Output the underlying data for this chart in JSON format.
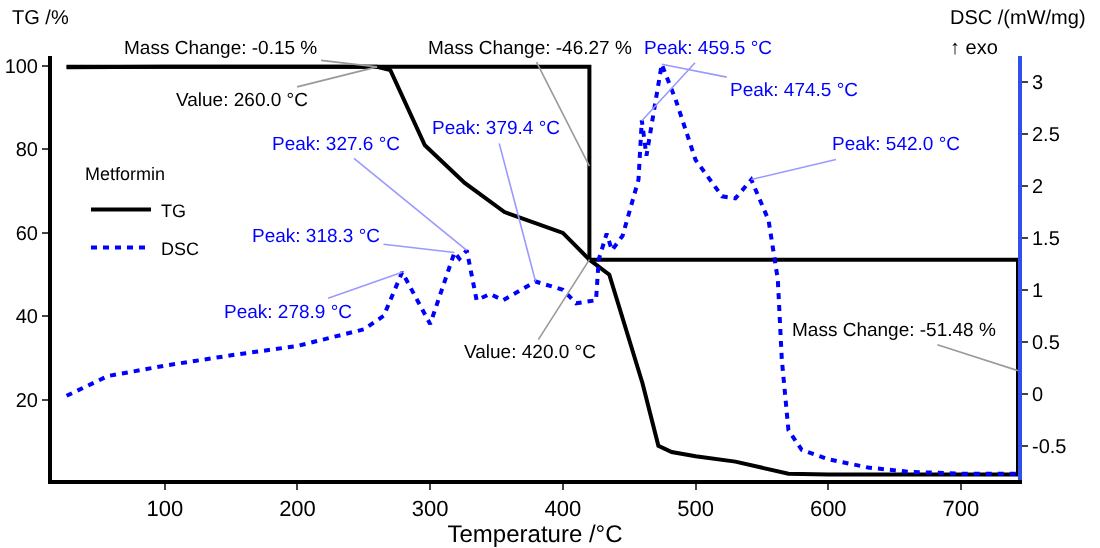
{
  "chart_data": {
    "type": "line",
    "xlabel": "Temperature /°C",
    "ylabel": "TG /%",
    "y2label": "DSC /(mW/mg)",
    "legend_title": "Metformin",
    "xlim": [
      15,
      743
    ],
    "xticks": [
      100,
      200,
      300,
      400,
      500,
      600,
      700
    ],
    "ylim": [
      0.8,
      102.4
    ],
    "yticks": [
      20,
      40,
      60,
      80,
      100
    ],
    "y2lim": [
      -0.83,
      3.25
    ],
    "y2ticks": [
      -0.5,
      0.0,
      0.5,
      1.0,
      1.5,
      2.0,
      2.5,
      3.0
    ],
    "grid": false,
    "legend": "left",
    "series": [
      {
        "name": "TG",
        "color": "#000000",
        "line_style": "solid",
        "x": [
          26,
          100,
          200,
          260,
          270,
          296,
          326,
          356,
          400,
          420,
          435,
          460,
          472,
          482,
          500,
          530,
          570,
          600,
          743
        ],
        "values": [
          99.7,
          99.8,
          99.8,
          99.8,
          99,
          81,
          72,
          65,
          60,
          53.6,
          50,
          24,
          9,
          7.5,
          6.5,
          5.2,
          2.3,
          2.1,
          2.1
        ]
      },
      {
        "name": "DSC",
        "color": "#0000ff",
        "line_style": "dotted",
        "axis": "y2",
        "x": [
          26,
          57,
          100,
          150,
          200,
          250,
          265,
          278.9,
          300,
          318.3,
          322,
          327.6,
          335,
          345,
          355,
          379.4,
          400,
          410,
          425,
          427,
          433,
          437,
          445,
          457,
          459.5,
          463,
          474.5,
          485,
          500,
          520,
          530,
          542,
          555,
          562,
          565,
          570,
          580,
          600,
          630,
          660,
          700,
          743
        ],
        "values": [
          -0.02,
          0.17,
          0.27,
          0.37,
          0.46,
          0.62,
          0.75,
          1.17,
          0.67,
          1.36,
          1.3,
          1.38,
          0.9,
          0.96,
          0.9,
          1.08,
          1.0,
          0.87,
          0.9,
          1.29,
          1.54,
          1.38,
          1.52,
          2.06,
          2.63,
          2.29,
          3.17,
          2.83,
          2.25,
          1.9,
          1.88,
          2.06,
          1.67,
          1.1,
          0.33,
          -0.35,
          -0.54,
          -0.63,
          -0.71,
          -0.75,
          -0.77,
          -0.77
        ]
      },
      {
        "type": "line",
        "color": "#000000",
        "line_style": "solid",
        "x": [
          26,
          420,
          420,
          743,
          743
        ],
        "values": [
          99.8,
          99.8,
          53.6,
          53.6,
          2.1
        ]
      }
    ],
    "annotations": [
      "↑ exo",
      {
        "text": "Mass Change: -0.15 %",
        "x": 260,
        "y": 99.8
      },
      {
        "text": "Value: 260.0 °C",
        "x": 260,
        "y": 99.8
      },
      {
        "text": "Mass Change: -46.27 %",
        "x": 420,
        "y": 76
      },
      {
        "text": "Value: 420.0 °C",
        "x": 420,
        "y": 53.6
      },
      {
        "text": "Mass Change: -51.48 %",
        "x": 743,
        "y": 27
      },
      {
        "text": "Peak: 278.9 °C",
        "x": 278.9,
        "y": 50.6
      },
      {
        "text": "Peak: 318.3 °C",
        "x": 318.3,
        "y": 55.3
      },
      {
        "text": "Peak: 327.6 °C",
        "x": 327.6,
        "y": 55.8
      },
      {
        "text": "Peak: 379.4 °C",
        "x": 379.4,
        "y": 48.4
      },
      {
        "text": "Peak: 459.5 °C",
        "x": 459.5,
        "y": 86.9
      },
      {
        "text": "Peak: 474.5 °C",
        "x": 474.5,
        "y": 100.4
      },
      {
        "text": "Peak: 542.0 °C",
        "x": 542.0,
        "y": 72.8
      }
    ]
  }
}
